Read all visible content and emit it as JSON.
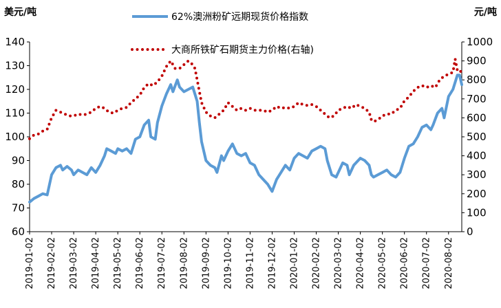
{
  "chart_data": {
    "type": "line",
    "left_axis_unit": "美元/吨",
    "right_axis_unit": "元/吨",
    "y_left_ticks": [
      "60",
      "70",
      "80",
      "90",
      "100",
      "110",
      "120",
      "130",
      "140"
    ],
    "y_right_ticks": [
      "0",
      "100",
      "200",
      "300",
      "400",
      "500",
      "600",
      "700",
      "800",
      "900",
      "1000"
    ],
    "y_left_range": [
      60,
      140
    ],
    "y_right_range": [
      0,
      1000
    ],
    "x_labels": [
      "2019-01-02",
      "2019-02-02",
      "2019-03-02",
      "2019-04-02",
      "2019-05-02",
      "2019-06-02",
      "2019-07-02",
      "2019-08-02",
      "2019-09-02",
      "2019-10-02",
      "2019-11-02",
      "2019-12-02",
      "2020-01-02",
      "2020-02-02",
      "2020-03-02",
      "2020-04-02",
      "2020-05-02",
      "2020-06-02",
      "2020-07-02",
      "2020-08-02"
    ],
    "x_start_month": 0,
    "x_end_month": 19.6,
    "series": [
      {
        "name": "62%澳洲粉矿远期现货价格指数",
        "axis": "left",
        "color": "#5B9BD5",
        "style": "solid",
        "points": [
          [
            0,
            72.5
          ],
          [
            0.2,
            74
          ],
          [
            0.4,
            75
          ],
          [
            0.6,
            76
          ],
          [
            0.8,
            75.5
          ],
          [
            1.0,
            84
          ],
          [
            1.2,
            87
          ],
          [
            1.4,
            88
          ],
          [
            1.5,
            86
          ],
          [
            1.7,
            87.5
          ],
          [
            1.9,
            86
          ],
          [
            2.0,
            84
          ],
          [
            2.2,
            86
          ],
          [
            2.4,
            85
          ],
          [
            2.6,
            84
          ],
          [
            2.8,
            87
          ],
          [
            3.0,
            85
          ],
          [
            3.2,
            88
          ],
          [
            3.4,
            92
          ],
          [
            3.5,
            95
          ],
          [
            3.7,
            94
          ],
          [
            3.9,
            93
          ],
          [
            4.0,
            95
          ],
          [
            4.2,
            94
          ],
          [
            4.4,
            95
          ],
          [
            4.6,
            93
          ],
          [
            4.8,
            99
          ],
          [
            5.0,
            100
          ],
          [
            5.2,
            105
          ],
          [
            5.4,
            107
          ],
          [
            5.5,
            100
          ],
          [
            5.7,
            99
          ],
          [
            5.8,
            106
          ],
          [
            6.0,
            113
          ],
          [
            6.2,
            118
          ],
          [
            6.4,
            122
          ],
          [
            6.5,
            119
          ],
          [
            6.7,
            124
          ],
          [
            6.8,
            121
          ],
          [
            7.0,
            119
          ],
          [
            7.2,
            120
          ],
          [
            7.4,
            121
          ],
          [
            7.5,
            118
          ],
          [
            7.6,
            115
          ],
          [
            7.7,
            106
          ],
          [
            7.8,
            98
          ],
          [
            8.0,
            90
          ],
          [
            8.2,
            88
          ],
          [
            8.4,
            87
          ],
          [
            8.5,
            85
          ],
          [
            8.7,
            92
          ],
          [
            8.8,
            90
          ],
          [
            9.0,
            94
          ],
          [
            9.2,
            97
          ],
          [
            9.4,
            93
          ],
          [
            9.6,
            92
          ],
          [
            9.8,
            93
          ],
          [
            10.0,
            89
          ],
          [
            10.2,
            88
          ],
          [
            10.4,
            84
          ],
          [
            10.6,
            82
          ],
          [
            10.8,
            80
          ],
          [
            11.0,
            77
          ],
          [
            11.2,
            82
          ],
          [
            11.4,
            85
          ],
          [
            11.6,
            88
          ],
          [
            11.8,
            86
          ],
          [
            12.0,
            91
          ],
          [
            12.2,
            93
          ],
          [
            12.4,
            92
          ],
          [
            12.6,
            91
          ],
          [
            12.8,
            94
          ],
          [
            13.0,
            95
          ],
          [
            13.2,
            96
          ],
          [
            13.4,
            95
          ],
          [
            13.5,
            90
          ],
          [
            13.7,
            84
          ],
          [
            13.9,
            83
          ],
          [
            14.0,
            85
          ],
          [
            14.2,
            89
          ],
          [
            14.4,
            88
          ],
          [
            14.5,
            84
          ],
          [
            14.7,
            88
          ],
          [
            14.9,
            90
          ],
          [
            15.0,
            91
          ],
          [
            15.2,
            90
          ],
          [
            15.4,
            88
          ],
          [
            15.5,
            84
          ],
          [
            15.6,
            83
          ],
          [
            15.8,
            84
          ],
          [
            16.0,
            85
          ],
          [
            16.2,
            86
          ],
          [
            16.4,
            84
          ],
          [
            16.6,
            83
          ],
          [
            16.8,
            85
          ],
          [
            17.0,
            91
          ],
          [
            17.2,
            96
          ],
          [
            17.4,
            97
          ],
          [
            17.6,
            100
          ],
          [
            17.8,
            104
          ],
          [
            18.0,
            105
          ],
          [
            18.2,
            103
          ],
          [
            18.3,
            105
          ],
          [
            18.5,
            110
          ],
          [
            18.7,
            112
          ],
          [
            18.8,
            108
          ],
          [
            19.0,
            117
          ],
          [
            19.2,
            120
          ],
          [
            19.4,
            126
          ],
          [
            19.5,
            126
          ],
          [
            19.6,
            122
          ]
        ]
      },
      {
        "name": "大商所铁矿石期货主力价格(右轴)",
        "axis": "right",
        "color": "#C00000",
        "style": "dotted",
        "points": [
          [
            0,
            490
          ],
          [
            0.2,
            510
          ],
          [
            0.4,
            515
          ],
          [
            0.6,
            530
          ],
          [
            0.8,
            540
          ],
          [
            1.0,
            600
          ],
          [
            1.2,
            640
          ],
          [
            1.4,
            630
          ],
          [
            1.6,
            620
          ],
          [
            1.8,
            610
          ],
          [
            2.0,
            610
          ],
          [
            2.2,
            620
          ],
          [
            2.4,
            615
          ],
          [
            2.6,
            620
          ],
          [
            2.8,
            630
          ],
          [
            3.0,
            650
          ],
          [
            3.2,
            660
          ],
          [
            3.4,
            650
          ],
          [
            3.6,
            630
          ],
          [
            3.8,
            625
          ],
          [
            4.0,
            640
          ],
          [
            4.2,
            650
          ],
          [
            4.4,
            655
          ],
          [
            4.6,
            680
          ],
          [
            4.8,
            700
          ],
          [
            5.0,
            720
          ],
          [
            5.2,
            760
          ],
          [
            5.4,
            780
          ],
          [
            5.6,
            770
          ],
          [
            5.8,
            790
          ],
          [
            6.0,
            820
          ],
          [
            6.2,
            870
          ],
          [
            6.4,
            900
          ],
          [
            6.6,
            860
          ],
          [
            6.8,
            860
          ],
          [
            7.0,
            880
          ],
          [
            7.2,
            900
          ],
          [
            7.4,
            880
          ],
          [
            7.5,
            860
          ],
          [
            7.6,
            800
          ],
          [
            7.7,
            740
          ],
          [
            7.8,
            680
          ],
          [
            8.0,
            630
          ],
          [
            8.2,
            610
          ],
          [
            8.4,
            600
          ],
          [
            8.6,
            620
          ],
          [
            8.8,
            640
          ],
          [
            9.0,
            680
          ],
          [
            9.2,
            660
          ],
          [
            9.4,
            640
          ],
          [
            9.6,
            650
          ],
          [
            9.8,
            640
          ],
          [
            10.0,
            650
          ],
          [
            10.2,
            640
          ],
          [
            10.4,
            640
          ],
          [
            10.6,
            640
          ],
          [
            10.8,
            630
          ],
          [
            11.0,
            640
          ],
          [
            11.2,
            660
          ],
          [
            11.4,
            650
          ],
          [
            11.6,
            655
          ],
          [
            11.8,
            650
          ],
          [
            12.0,
            660
          ],
          [
            12.2,
            680
          ],
          [
            12.4,
            670
          ],
          [
            12.6,
            665
          ],
          [
            12.8,
            670
          ],
          [
            13.0,
            660
          ],
          [
            13.2,
            640
          ],
          [
            13.4,
            620
          ],
          [
            13.6,
            600
          ],
          [
            13.8,
            610
          ],
          [
            14.0,
            640
          ],
          [
            14.2,
            650
          ],
          [
            14.4,
            660
          ],
          [
            14.6,
            650
          ],
          [
            14.8,
            670
          ],
          [
            15.0,
            660
          ],
          [
            15.2,
            650
          ],
          [
            15.4,
            630
          ],
          [
            15.5,
            590
          ],
          [
            15.6,
            580
          ],
          [
            15.8,
            590
          ],
          [
            16.0,
            610
          ],
          [
            16.2,
            620
          ],
          [
            16.4,
            620
          ],
          [
            16.6,
            640
          ],
          [
            16.8,
            650
          ],
          [
            17.0,
            690
          ],
          [
            17.2,
            710
          ],
          [
            17.4,
            740
          ],
          [
            17.6,
            760
          ],
          [
            17.8,
            770
          ],
          [
            18.0,
            760
          ],
          [
            18.2,
            770
          ],
          [
            18.4,
            760
          ],
          [
            18.6,
            800
          ],
          [
            18.8,
            820
          ],
          [
            19.0,
            830
          ],
          [
            19.2,
            840
          ],
          [
            19.3,
            910
          ],
          [
            19.4,
            850
          ],
          [
            19.5,
            840
          ],
          [
            19.6,
            850
          ]
        ]
      }
    ]
  }
}
